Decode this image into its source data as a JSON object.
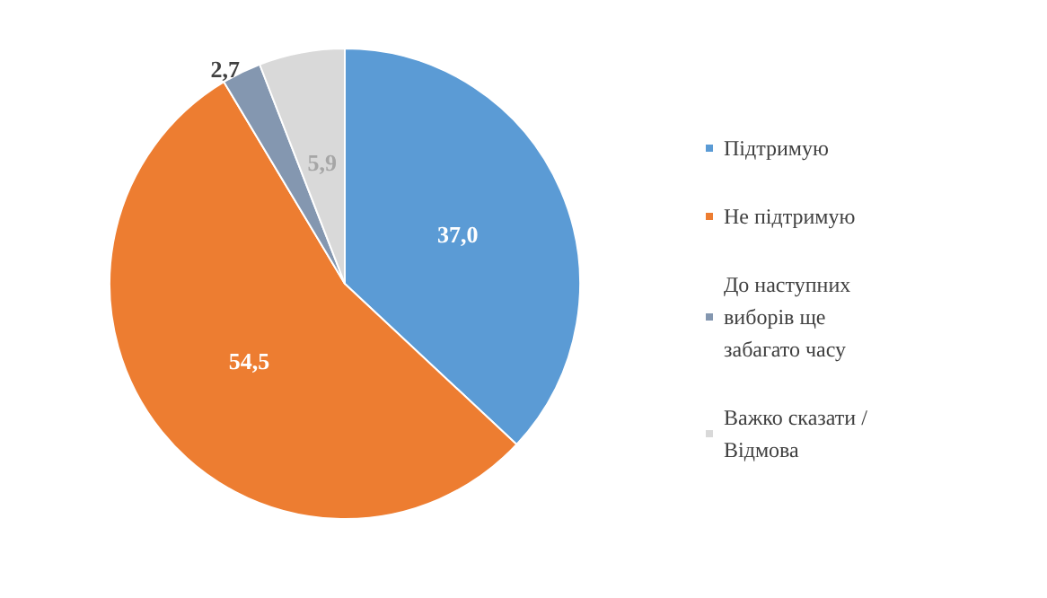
{
  "chart_data": {
    "type": "pie",
    "categories": [
      "Підтримую",
      "Не підтримую",
      "До наступних виборів ще забагато часу",
      "Важко сказати / Відмова"
    ],
    "values": [
      37.0,
      54.5,
      2.7,
      5.9
    ],
    "colors": [
      "#5b9bd5",
      "#ed7d31",
      "#8497b0",
      "#d9d9d9"
    ],
    "value_labels": [
      "37,0",
      "54,5",
      "2,7",
      "5,9"
    ],
    "legend": "right"
  }
}
